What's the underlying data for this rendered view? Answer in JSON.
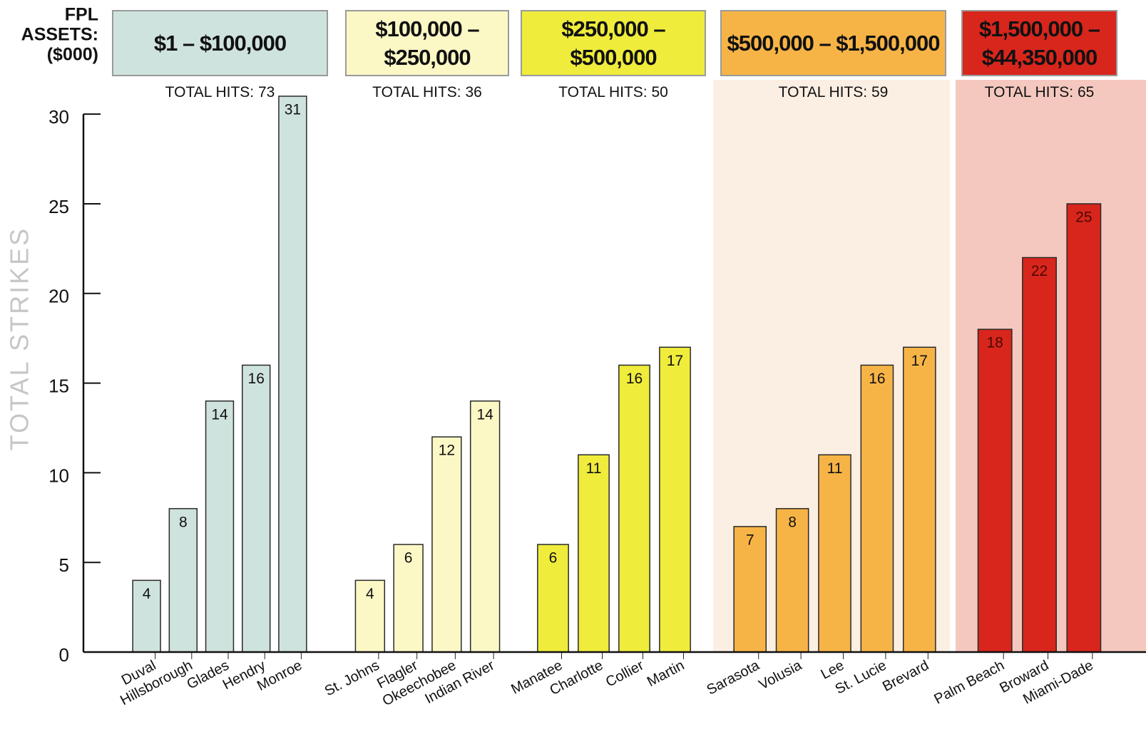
{
  "chart_data": {
    "type": "bar",
    "title": [
      "FPL",
      "ASSETS:",
      "($000)"
    ],
    "y_label": "TOTAL STRIKES",
    "total_label": "TOTAL HITS:",
    "ylim": [
      0,
      31
    ],
    "yticks": [
      0,
      5,
      10,
      15,
      20,
      25,
      30
    ],
    "groups": [
      {
        "name": "$1 – $100,000",
        "color": "#cfe3de",
        "total": 73,
        "categories": [
          "Duval",
          "Hillsborough",
          "Glades",
          "Hendry",
          "Monroe"
        ],
        "values": [
          4,
          8,
          14,
          16,
          31
        ]
      },
      {
        "name": "$100,000 – $250,000",
        "color": "#fcf8c6",
        "total": 36,
        "categories": [
          "St. Johns",
          "Flagler",
          "Okeechobee",
          "Indian River"
        ],
        "values": [
          4,
          6,
          12,
          14
        ]
      },
      {
        "name": "$250,000 – $500,000",
        "color": "#efec3c",
        "total": 50,
        "categories": [
          "Manatee",
          "Charlotte",
          "Collier",
          "Martin"
        ],
        "values": [
          6,
          11,
          16,
          17
        ]
      },
      {
        "name": "$500,000 – $1,500,000",
        "color": "#f7b446",
        "band_color": "#fbeee3",
        "total": 59,
        "categories": [
          "Sarasota",
          "Volusia",
          "Lee",
          "St. Lucie",
          "Brevard"
        ],
        "values": [
          7,
          8,
          11,
          16,
          17
        ]
      },
      {
        "name": "$1,500,000 – $44,350,000",
        "color": "#d8261c",
        "band_color": "#f4c8bf",
        "total": 65,
        "categories": [
          "Palm Beach",
          "Broward",
          "Miami-Dade"
        ],
        "values": [
          18,
          22,
          25
        ]
      }
    ]
  }
}
